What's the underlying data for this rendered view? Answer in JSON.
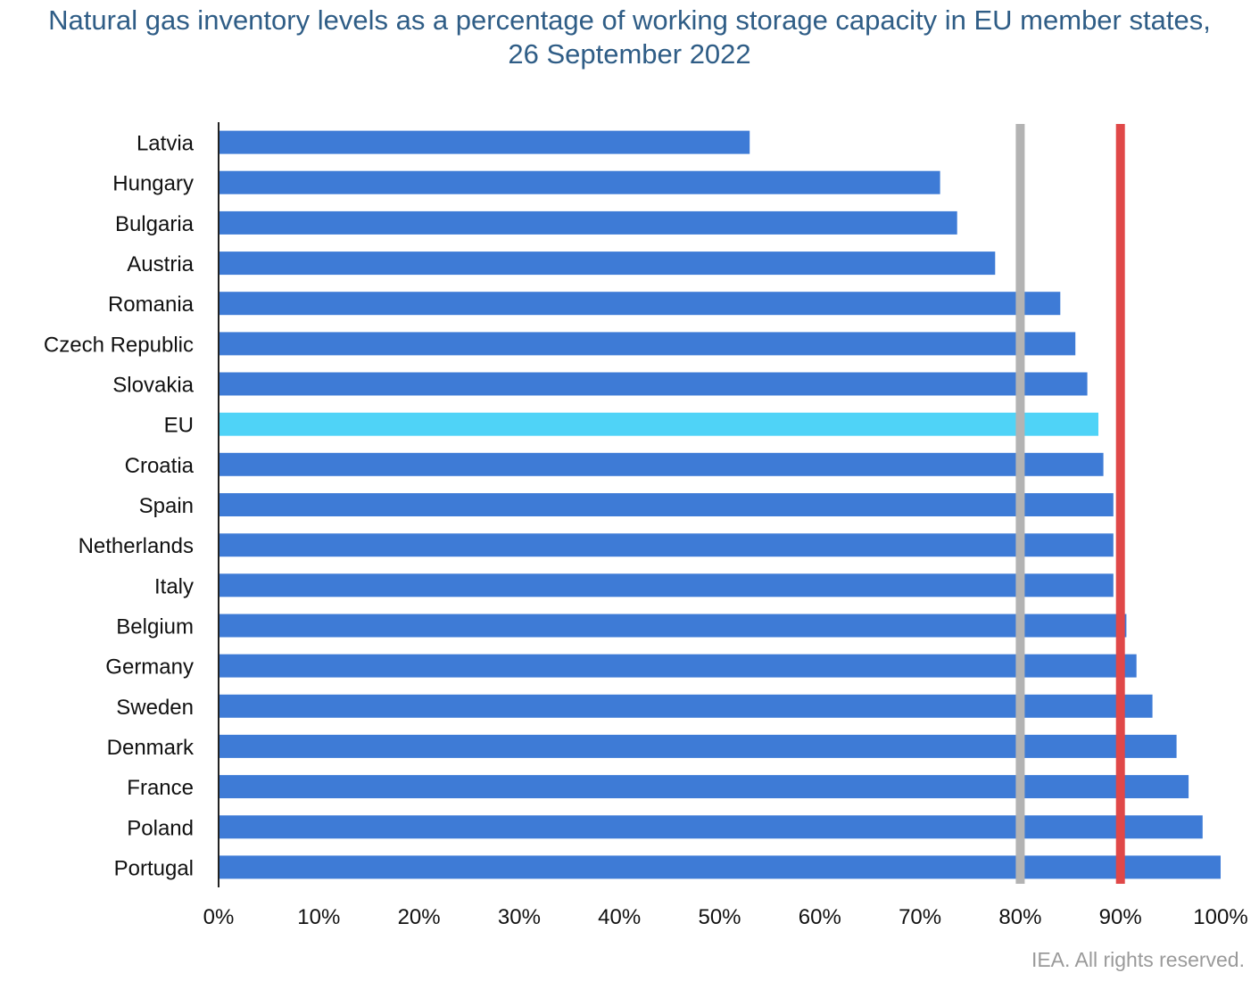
{
  "chart_data": {
    "type": "bar",
    "orientation": "horizontal",
    "title_lines": [
      "Natural gas inventory levels as a percentage of working storage capacity in EU member states,",
      "26 September 2022"
    ],
    "categories": [
      "Latvia",
      "Hungary",
      "Bulgaria",
      "Austria",
      "Romania",
      "Czech Republic",
      "Slovakia",
      "EU",
      "Croatia",
      "Spain",
      "Netherlands",
      "Italy",
      "Belgium",
      "Germany",
      "Sweden",
      "Denmark",
      "France",
      "Poland",
      "Portugal"
    ],
    "values": [
      53,
      72,
      73.7,
      77.5,
      84,
      85.5,
      86.7,
      87.8,
      88.3,
      89.3,
      89.3,
      89.3,
      90.6,
      91.6,
      93.2,
      95.6,
      96.8,
      98.2,
      100
    ],
    "highlight_category": "EU",
    "xlim": [
      0,
      100
    ],
    "x_ticks": [
      0,
      10,
      20,
      30,
      40,
      50,
      60,
      70,
      80,
      90,
      100
    ],
    "x_tick_labels": [
      "0%",
      "10%",
      "20%",
      "30%",
      "40%",
      "50%",
      "60%",
      "70%",
      "80%",
      "90%",
      "100%"
    ],
    "reference_lines": [
      {
        "value": 80,
        "color": "#b3b3b3"
      },
      {
        "value": 90,
        "color": "#e04848"
      }
    ],
    "grid": false,
    "legend": "none",
    "colors": {
      "bar": "#3e7bd6",
      "highlight": "#4fd3f7",
      "title": "#2f5d86",
      "axis": "#222222"
    }
  },
  "credit": "IEA. All rights reserved."
}
